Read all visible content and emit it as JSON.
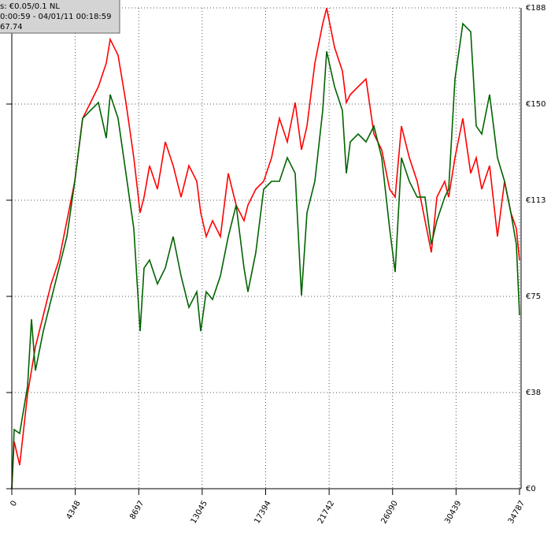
{
  "chart_data": {
    "type": "line",
    "annotations": [
      "s: €0.05/0.1 NL",
      "0:00:59 - 04/01/11 00:18:59",
      "67.74"
    ],
    "x": [
      0,
      162,
      539,
      1079,
      1348,
      1618,
      2157,
      2697,
      3236,
      3775,
      4314,
      4854,
      5393,
      5932,
      6472,
      6741,
      7281,
      7820,
      8359,
      8791,
      9060,
      9438,
      9977,
      10516,
      11056,
      11595,
      12134,
      12674,
      12943,
      13321,
      13752,
      14291,
      14831,
      15370,
      15909,
      16179,
      16718,
      17258,
      17797,
      18336,
      18876,
      19415,
      19846,
      20224,
      20763,
      21302,
      21572,
      22111,
      22651,
      22920,
      23190,
      23729,
      24269,
      24808,
      25347,
      25887,
      26264,
      26695,
      27235,
      27774,
      28313,
      28745,
      29122,
      29662,
      29931,
      30363,
      30902,
      31442,
      31819,
      32197,
      32736,
      33276,
      33761,
      34192,
      34570,
      34787
    ],
    "series": [
      {
        "color": "#ff0000",
        "values": [
          0,
          18.5,
          9.2,
          37,
          46.2,
          55.5,
          67.8,
          80.1,
          89.4,
          104.8,
          120.2,
          144.8,
          151,
          157.2,
          166.4,
          175.7,
          169.5,
          151,
          129.4,
          107.9,
          114,
          126.3,
          117.1,
          135.6,
          126.3,
          114,
          126.3,
          120.2,
          107.9,
          98.6,
          104.8,
          98.6,
          123.3,
          110.9,
          104.8,
          110.9,
          117.1,
          120.2,
          129.4,
          144.8,
          135.6,
          151,
          132.5,
          141.8,
          166.4,
          181.8,
          187.9,
          172.6,
          163.3,
          151,
          154.1,
          157.2,
          160.2,
          138.7,
          132.5,
          117.1,
          114,
          141.8,
          129.4,
          120.2,
          104.8,
          92.4,
          114,
          120.2,
          114,
          129.4,
          144.8,
          123.3,
          129.4,
          117.1,
          126.3,
          98.6,
          120.2,
          107.9,
          101.7,
          89.4
        ]
      },
      {
        "color": "#006400",
        "values": [
          0,
          23.1,
          21.6,
          40.1,
          66.3,
          46.2,
          61.6,
          74,
          86.3,
          98.6,
          120.2,
          144.8,
          147.9,
          151,
          137.1,
          154.1,
          144.8,
          123.3,
          101.7,
          61.6,
          86.3,
          89.4,
          80.1,
          86.3,
          98.6,
          83.2,
          70.9,
          77,
          61.6,
          77,
          74,
          83.2,
          98.6,
          110.9,
          86.3,
          77,
          92.4,
          117.1,
          120.2,
          120.2,
          129.4,
          123.3,
          75.5,
          107.9,
          120.2,
          147.9,
          171,
          157.2,
          147.9,
          123.3,
          135.6,
          138.7,
          135.6,
          141.8,
          129.4,
          101.7,
          84.7,
          129.4,
          120.2,
          114,
          114,
          95.5,
          104.8,
          114,
          117.1,
          160.2,
          181.8,
          178.7,
          141.8,
          138.7,
          154.1,
          129.4,
          120.2,
          107.9,
          95.5,
          67.8
        ]
      }
    ],
    "xlim": [
      0,
      34787
    ],
    "xticks": [
      0,
      4348,
      8697,
      13045,
      17394,
      21742,
      26090,
      30439,
      34787
    ],
    "ylim": [
      0,
      188
    ],
    "yticks": [
      {
        "value": 0,
        "label": "€0"
      },
      {
        "value": 37.6,
        "label": "€38"
      },
      {
        "value": 75.2,
        "label": "€75"
      },
      {
        "value": 112.8,
        "label": "€113"
      },
      {
        "value": 150.4,
        "label": "€150"
      },
      {
        "value": 188,
        "label": "€188"
      }
    ],
    "grid": true
  }
}
